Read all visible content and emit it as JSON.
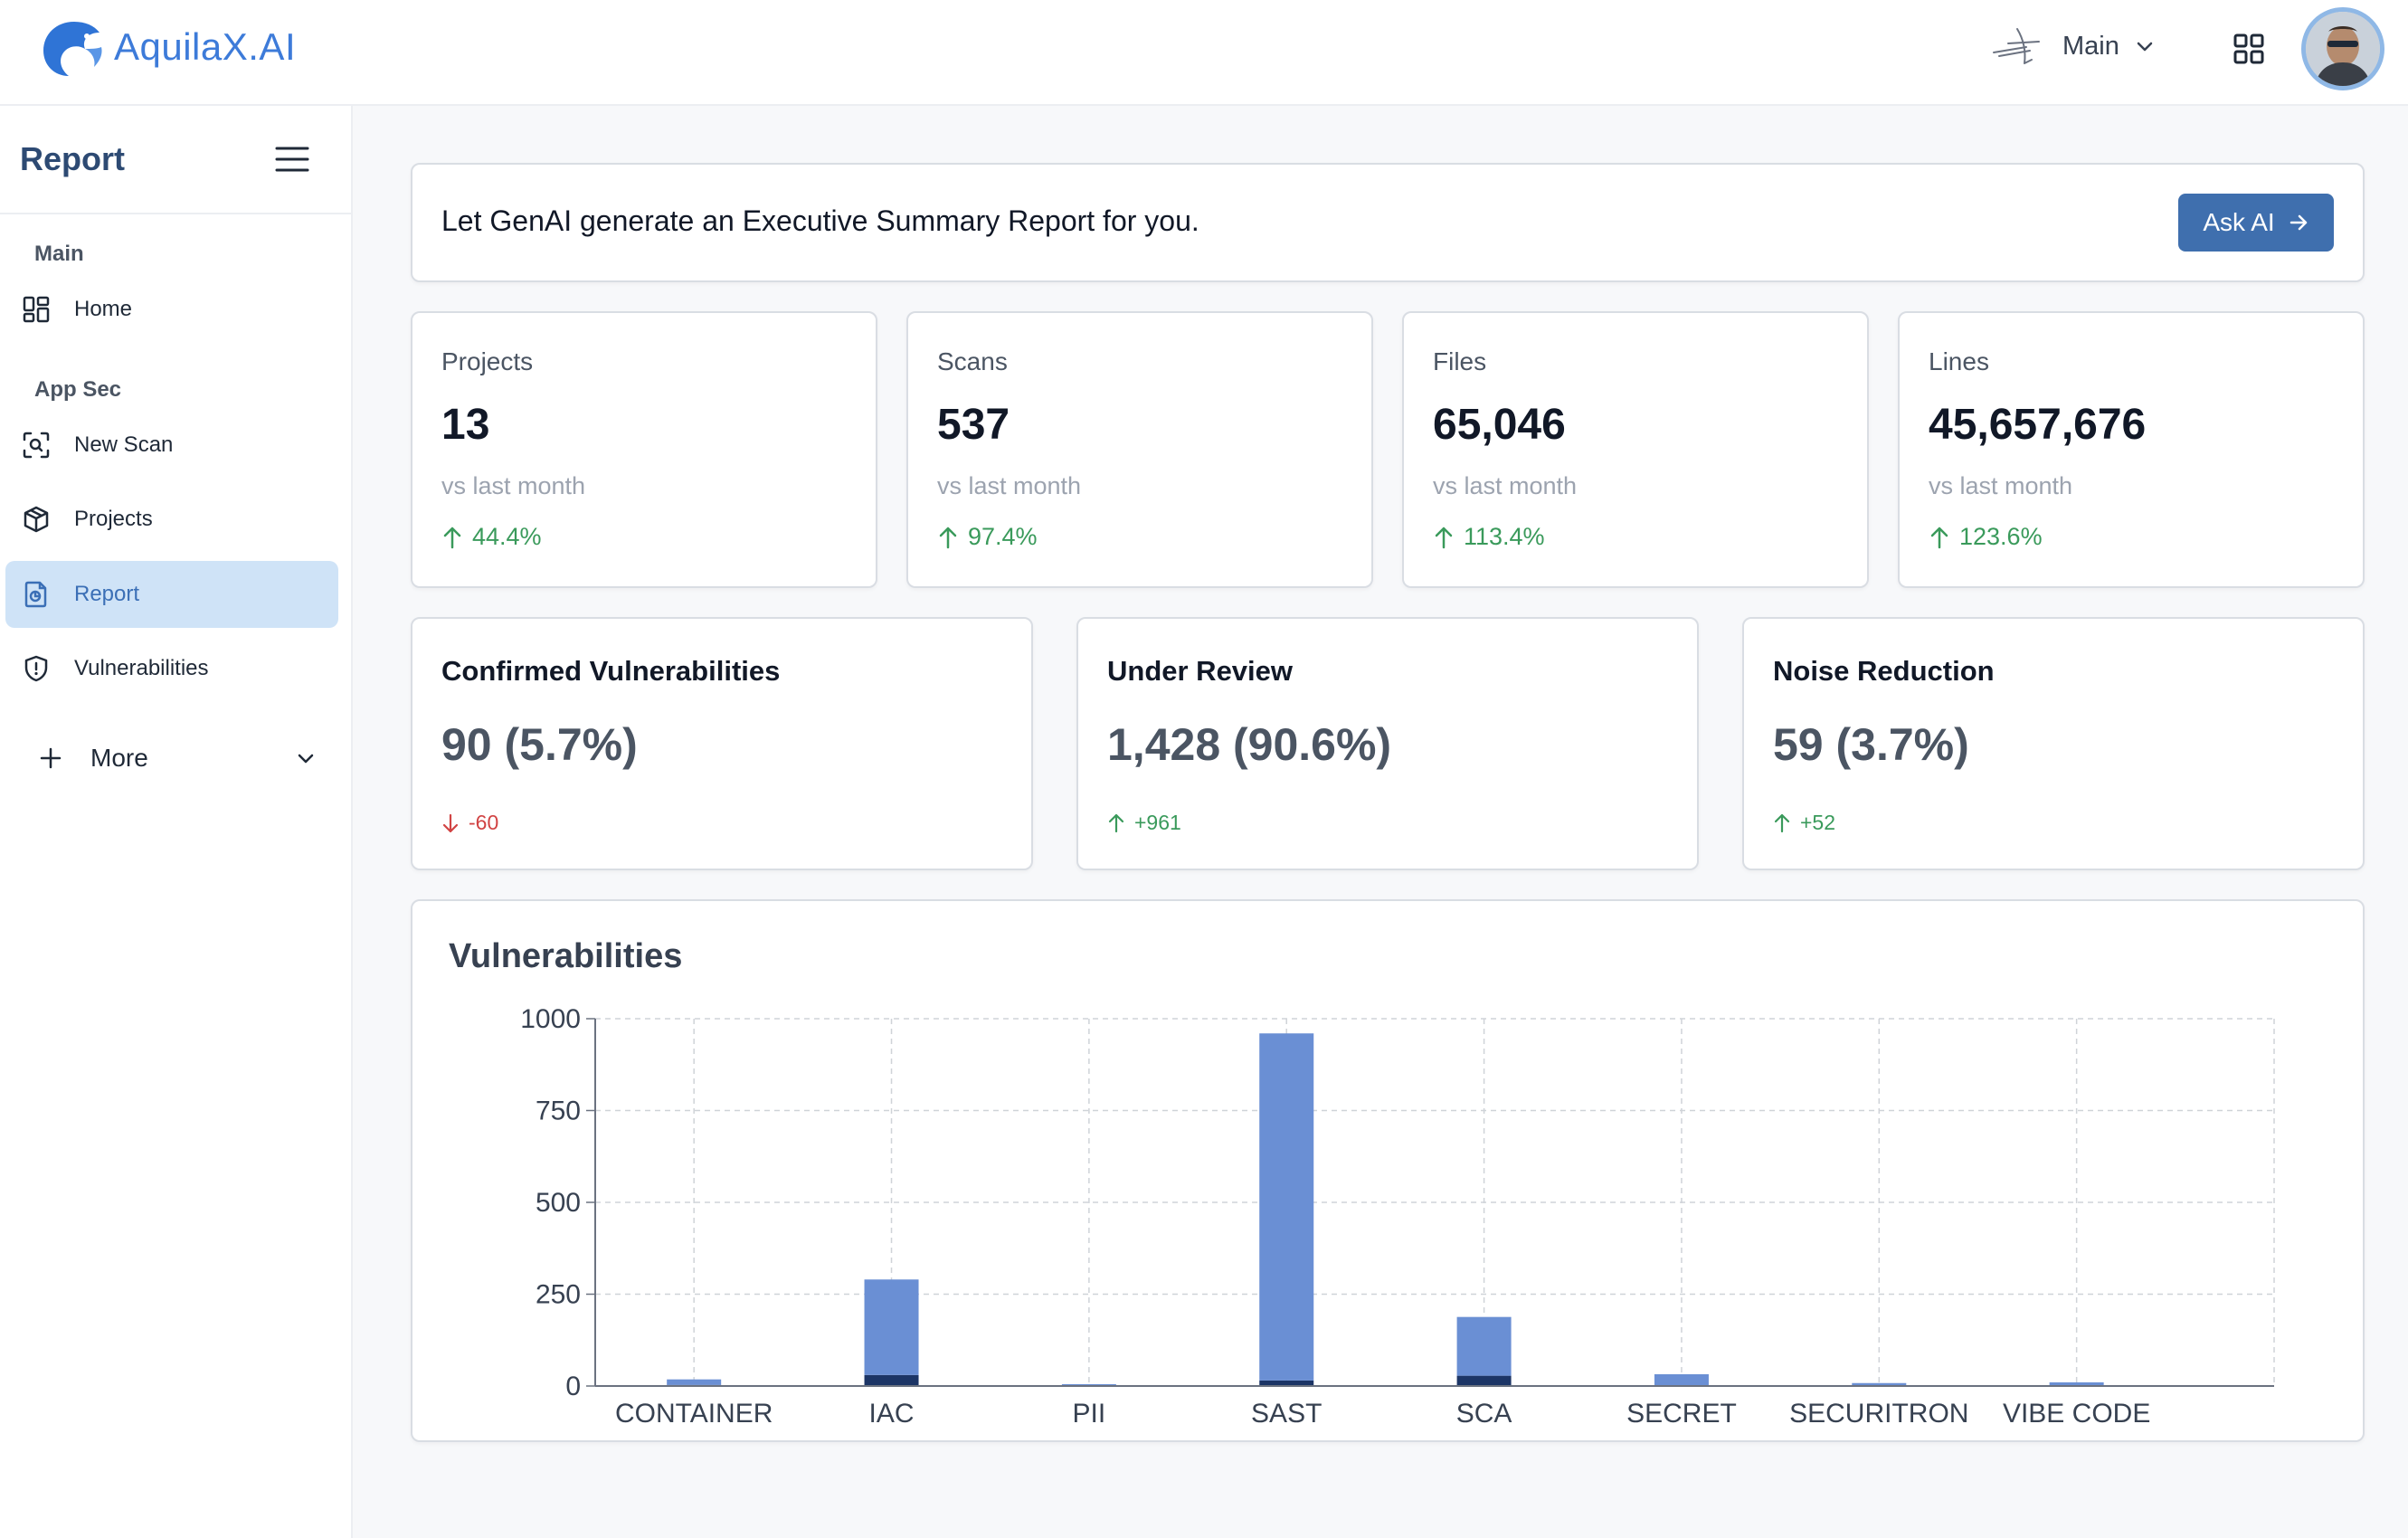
{
  "header": {
    "logo_text": "AquilaX.AI",
    "branch_label": "Main"
  },
  "sidebar": {
    "title": "Report",
    "sections": {
      "main": "Main",
      "appsec": "App Sec"
    },
    "items": {
      "home": "Home",
      "new_scan": "New Scan",
      "projects": "Projects",
      "report": "Report",
      "vulnerabilities": "Vulnerabilities",
      "more": "More"
    }
  },
  "banner": {
    "text": "Let GenAI generate an Executive Summary Report for you.",
    "button_label": "Ask AI"
  },
  "stats": [
    {
      "label": "Projects",
      "value": "13",
      "sub": "vs last month",
      "delta": "44.4%"
    },
    {
      "label": "Scans",
      "value": "537",
      "sub": "vs last month",
      "delta": "97.4%"
    },
    {
      "label": "Files",
      "value": "65,046",
      "sub": "vs last month",
      "delta": "113.4%"
    },
    {
      "label": "Lines",
      "value": "45,657,676",
      "sub": "vs last month",
      "delta": "123.6%"
    }
  ],
  "summary": [
    {
      "label": "Confirmed Vulnerabilities",
      "value": "90 (5.7%)",
      "delta": "-60",
      "direction": "down"
    },
    {
      "label": "Under Review",
      "value": "1,428 (90.6%)",
      "delta": "+961",
      "direction": "up"
    },
    {
      "label": "Noise Reduction",
      "value": "59 (3.7%)",
      "delta": "+52",
      "direction": "up"
    }
  ],
  "colors": {
    "accent": "#3f6fae",
    "bar_light": "#6a8fd4",
    "bar_dark": "#1c3566",
    "up": "#3a9a5b",
    "down": "#d14343"
  },
  "chart_data": {
    "type": "bar",
    "title": "Vulnerabilities",
    "categories": [
      "CONTAINER",
      "IAC",
      "PII",
      "SAST",
      "SCA",
      "SECRET",
      "SECURITRON",
      "VIBE CODE"
    ],
    "series": [
      {
        "values": [
          3,
          30,
          0,
          15,
          28,
          2,
          0,
          0
        ]
      },
      {
        "values": [
          15,
          260,
          5,
          945,
          160,
          30,
          8,
          10
        ]
      }
    ],
    "stacked": true,
    "ylim": [
      0,
      1000
    ],
    "yticks": [
      0,
      250,
      500,
      750,
      1000
    ],
    "grid": true,
    "legend": "none"
  }
}
